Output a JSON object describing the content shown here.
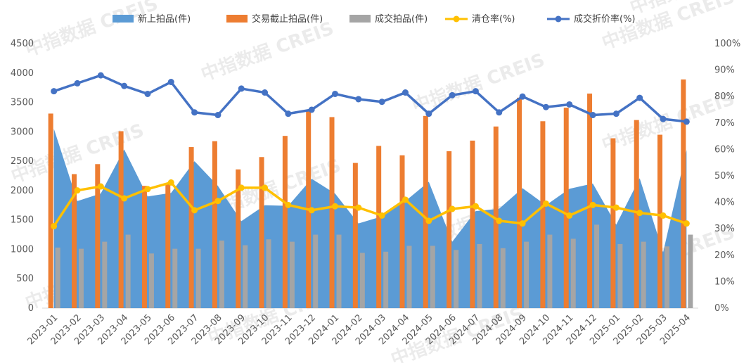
{
  "chart_data": {
    "type": "bar",
    "categories": [
      "2023-01",
      "2023-02",
      "2023-03",
      "2023-04",
      "2023-05",
      "2023-06",
      "2023-07",
      "2023-08",
      "2023-09",
      "2023-10",
      "2023-11",
      "2023-12",
      "2024-01",
      "2024-02",
      "2024-03",
      "2024-04",
      "2024-05",
      "2024-06",
      "2024-07",
      "2024-08",
      "2024-09",
      "2024-10",
      "2024-11",
      "2024-12",
      "2025-01",
      "2025-02",
      "2025-03",
      "2025-04"
    ],
    "left_axis": {
      "ylim": [
        0,
        4500
      ],
      "ticks": [
        0,
        500,
        1000,
        1500,
        2000,
        2500,
        3000,
        3500,
        4000,
        4500
      ]
    },
    "right_axis": {
      "ylim": [
        0,
        100
      ],
      "ticks": [
        "0%",
        "10%",
        "20%",
        "30%",
        "40%",
        "50%",
        "60%",
        "70%",
        "80%",
        "90%",
        "100%"
      ]
    },
    "legend_position": "top",
    "series": [
      {
        "name": "新上拍品(件)",
        "kind": "area",
        "axis": "left",
        "color": "#5b9bd5",
        "values": [
          3050,
          1820,
          1950,
          2700,
          1900,
          1960,
          2500,
          2080,
          1480,
          1750,
          1740,
          2200,
          1950,
          1440,
          1560,
          1820,
          2150,
          1130,
          1650,
          1690,
          2040,
          1750,
          2030,
          2120,
          1420,
          2210,
          950,
          2690
        ]
      },
      {
        "name": "交易截止拍品(件)",
        "kind": "bar",
        "axis": "left",
        "color": "#ed7d31",
        "values": [
          3310,
          2280,
          2450,
          3010,
          2080,
          2120,
          2740,
          2840,
          2360,
          2570,
          2930,
          3380,
          3250,
          2470,
          2760,
          2600,
          3270,
          2670,
          2850,
          3090,
          3580,
          3180,
          3410,
          3650,
          2890,
          3200,
          2950,
          3890
        ]
      },
      {
        "name": "成交拍品(件)",
        "kind": "bar",
        "axis": "left",
        "color": "#a5a5a5",
        "values": [
          1030,
          1010,
          1130,
          1250,
          930,
          1010,
          1010,
          1150,
          1070,
          1170,
          1130,
          1250,
          1250,
          940,
          960,
          1060,
          1060,
          990,
          1090,
          1020,
          1130,
          1250,
          1180,
          1420,
          1090,
          1130,
          1050,
          1250
        ]
      },
      {
        "name": "清仓率(%)",
        "kind": "line",
        "axis": "right",
        "color": "#ffc000",
        "values": [
          31,
          44.5,
          46,
          41.5,
          45,
          47.5,
          37,
          40.5,
          45.5,
          45.5,
          39,
          37,
          38.5,
          38,
          35,
          41,
          33,
          37.5,
          38.5,
          33,
          32,
          39.5,
          35,
          39,
          38,
          36,
          35,
          32
        ]
      },
      {
        "name": "成交折价率(%)",
        "kind": "line",
        "axis": "right",
        "color": "#4472c4",
        "values": [
          82,
          85,
          88,
          84,
          81,
          85.5,
          74,
          73,
          83,
          81.5,
          73.5,
          75,
          81,
          79,
          78,
          81.5,
          73.5,
          80.5,
          82,
          74,
          80,
          76,
          77,
          73,
          73.5,
          79.5,
          71.5,
          70.5
        ]
      }
    ],
    "watermark": "中指数据 CREIS"
  }
}
